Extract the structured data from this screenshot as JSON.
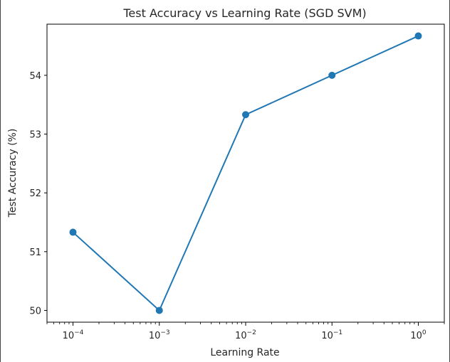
{
  "chart_data": {
    "type": "line",
    "title": "Test Accuracy vs Learning Rate (SGD SVM)",
    "xlabel": "Learning Rate",
    "ylabel": "Test Accuracy (%)",
    "xscale": "log",
    "xlim": [
      5e-05,
      2.0
    ],
    "ylim": [
      49.8,
      54.87
    ],
    "x": [
      0.0001,
      0.001,
      0.01,
      0.1,
      1
    ],
    "xtick_labels": [
      {
        "base": "10",
        "exp": "−4"
      },
      {
        "base": "10",
        "exp": "−3"
      },
      {
        "base": "10",
        "exp": "−2"
      },
      {
        "base": "10",
        "exp": "−1"
      },
      {
        "base": "10",
        "exp": "0"
      }
    ],
    "yticks": [
      50,
      51,
      52,
      53,
      54
    ],
    "ytick_labels": [
      "50",
      "51",
      "52",
      "53",
      "54"
    ],
    "series": [
      {
        "values": [
          51.33,
          50.0,
          53.33,
          54.0,
          54.67
        ],
        "color": "#1f77b4",
        "marker": "circle"
      }
    ],
    "grid": false,
    "legend": "none"
  }
}
